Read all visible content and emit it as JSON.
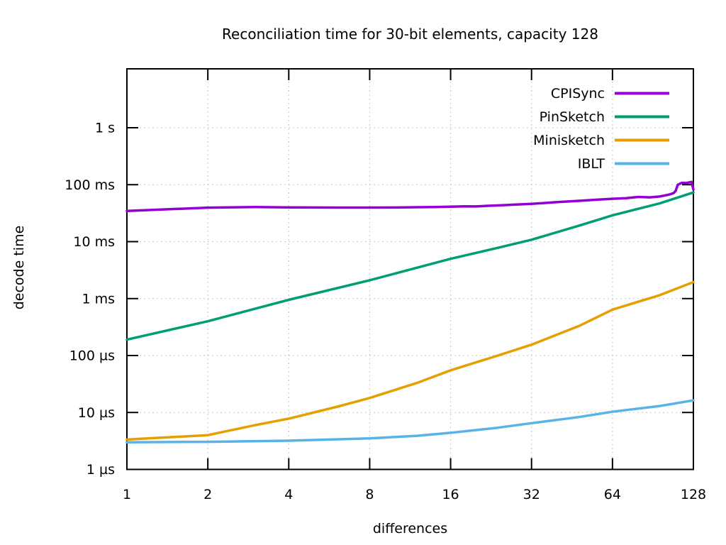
{
  "page": {
    "background": "#ffffff"
  },
  "chart_data": {
    "type": "line",
    "title": "Reconciliation time for 30-bit elements, capacity 128",
    "xlabel": "differences",
    "ylabel": "decode time",
    "x_scale": "log2",
    "y_scale": "log10",
    "grid": true,
    "legend_position": "top-right-inside",
    "xlim": [
      1,
      128
    ],
    "ylim_seconds": [
      1e-06,
      11
    ],
    "axis_color": "#000000",
    "grid_color": "#c6c6c6",
    "x_ticks": [
      {
        "value": 1,
        "label": "1"
      },
      {
        "value": 2,
        "label": "2"
      },
      {
        "value": 4,
        "label": "4"
      },
      {
        "value": 8,
        "label": "8"
      },
      {
        "value": 16,
        "label": "16"
      },
      {
        "value": 32,
        "label": "32"
      },
      {
        "value": 64,
        "label": "64"
      },
      {
        "value": 128,
        "label": "128"
      }
    ],
    "y_ticks": [
      {
        "value_us": 1,
        "label": "1 µs"
      },
      {
        "value_us": 10,
        "label": "10 µs"
      },
      {
        "value_us": 100,
        "label": "100 µs"
      },
      {
        "value_us": 1000,
        "label": "1 ms"
      },
      {
        "value_us": 10000,
        "label": "10 ms"
      },
      {
        "value_us": 100000,
        "label": "100 ms"
      },
      {
        "value_us": 1000000,
        "label": "1 s"
      }
    ],
    "series": [
      {
        "name": "CPISync",
        "color": "#9400d3",
        "points_x": [
          1,
          2,
          3,
          4,
          5,
          6,
          8,
          10,
          12,
          14,
          16,
          18,
          20,
          22,
          24,
          28,
          32,
          40,
          48,
          56,
          64,
          72,
          80,
          88,
          96,
          104,
          108,
          110,
          112,
          116,
          120,
          124,
          126,
          128
        ],
        "points_us": [
          34500,
          39500,
          40500,
          40000,
          39800,
          39600,
          39600,
          39800,
          40200,
          40600,
          41000,
          41800,
          41500,
          42600,
          43200,
          44800,
          46000,
          49500,
          52000,
          54500,
          56500,
          58000,
          61000,
          60000,
          62000,
          67000,
          71000,
          78000,
          100000,
          108000,
          107000,
          110000,
          112000,
          82000
        ]
      },
      {
        "name": "PinSketch",
        "color": "#009e73",
        "points_x": [
          1,
          2,
          4,
          8,
          16,
          24,
          32,
          48,
          64,
          96,
          128
        ],
        "points_us": [
          190,
          400,
          950,
          2100,
          5000,
          7800,
          10800,
          19000,
          29000,
          47000,
          73000
        ]
      },
      {
        "name": "Minisketch",
        "color": "#e69f00",
        "points_x": [
          1,
          2,
          3,
          4,
          6,
          8,
          12,
          16,
          24,
          32,
          48,
          64,
          96,
          128
        ],
        "points_us": [
          3.35,
          4.0,
          6.0,
          7.8,
          12.5,
          18,
          33,
          55,
          100,
          155,
          330,
          640,
          1150,
          1950
        ]
      },
      {
        "name": "IBLT",
        "color": "#56b4e9",
        "points_x": [
          1,
          2,
          4,
          8,
          12,
          16,
          24,
          32,
          48,
          64,
          96,
          128
        ],
        "points_us": [
          3.0,
          3.05,
          3.2,
          3.5,
          3.9,
          4.4,
          5.4,
          6.5,
          8.3,
          10.3,
          13.0,
          16.3
        ]
      }
    ]
  }
}
